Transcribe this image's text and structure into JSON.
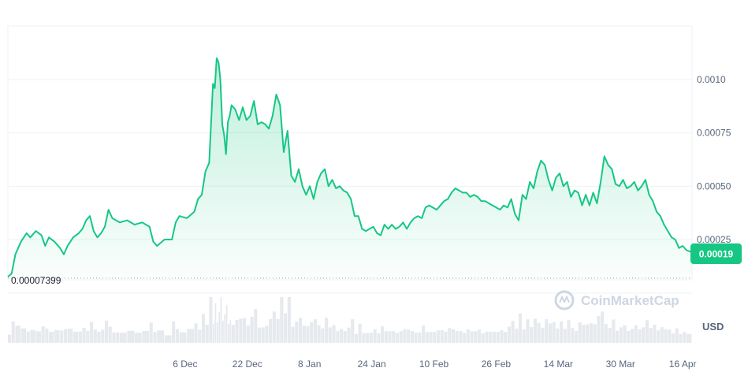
{
  "chart_data": {
    "type": "area",
    "currency_label": "USD",
    "watermark": "CoinMarketCap",
    "current_price_label": "0.00019",
    "low_price_label": "0.00007399",
    "ylim": [
      7.399e-05,
      0.00114
    ],
    "y_ticks": [
      {
        "value": 0.001,
        "label": "0.0010"
      },
      {
        "value": 0.00075,
        "label": "0.00075"
      },
      {
        "value": 0.0005,
        "label": "0.00050"
      },
      {
        "value": 0.00025,
        "label": "0.00025"
      }
    ],
    "x_ticks": [
      "6 Dec",
      "22 Dec",
      "8 Jan",
      "24 Jan",
      "10 Feb",
      "26 Feb",
      "14 Mar",
      "30 Mar",
      "16 Apr"
    ],
    "x_tick_positions": [
      5.7,
      7.7,
      9.7,
      11.7,
      13.7,
      15.7,
      17.7,
      19.7,
      21.7
    ],
    "x_range": [
      0,
      22.0
    ],
    "series": [
      {
        "color": "#16c784",
        "points": [
          [
            0.0,
            7.5e-05
          ],
          [
            0.1,
            9e-05
          ],
          [
            0.2,
            0.00018
          ],
          [
            0.35,
            0.00024
          ],
          [
            0.5,
            0.00028
          ],
          [
            0.6,
            0.00026
          ],
          [
            0.75,
            0.00029
          ],
          [
            0.9,
            0.00027
          ],
          [
            1.0,
            0.00022
          ],
          [
            1.1,
            0.00026
          ],
          [
            1.25,
            0.00024
          ],
          [
            1.4,
            0.00021
          ],
          [
            1.5,
            0.00018
          ],
          [
            1.6,
            0.00022
          ],
          [
            1.75,
            0.00026
          ],
          [
            1.9,
            0.00028
          ],
          [
            2.0,
            0.0003
          ],
          [
            2.1,
            0.00034
          ],
          [
            2.2,
            0.00036
          ],
          [
            2.3,
            0.00029
          ],
          [
            2.4,
            0.00026
          ],
          [
            2.5,
            0.00028
          ],
          [
            2.6,
            0.00031
          ],
          [
            2.7,
            0.00039
          ],
          [
            2.8,
            0.00035
          ],
          [
            2.9,
            0.00034
          ],
          [
            3.0,
            0.00033
          ],
          [
            3.2,
            0.00034
          ],
          [
            3.4,
            0.00032
          ],
          [
            3.6,
            0.00033
          ],
          [
            3.8,
            0.00031
          ],
          [
            3.9,
            0.00024
          ],
          [
            4.0,
            0.00022
          ],
          [
            4.2,
            0.00025
          ],
          [
            4.4,
            0.00025
          ],
          [
            4.5,
            0.00033
          ],
          [
            4.6,
            0.00036
          ],
          [
            4.8,
            0.00035
          ],
          [
            5.0,
            0.00038
          ],
          [
            5.1,
            0.00044
          ],
          [
            5.2,
            0.00046
          ],
          [
            5.3,
            0.00057
          ],
          [
            5.4,
            0.00061
          ],
          [
            5.5,
            0.00098
          ],
          [
            5.55,
            0.00096
          ],
          [
            5.6,
            0.0011
          ],
          [
            5.65,
            0.00108
          ],
          [
            5.7,
            0.001
          ],
          [
            5.75,
            0.00079
          ],
          [
            5.8,
            0.00074
          ],
          [
            5.85,
            0.00065
          ],
          [
            5.9,
            0.0008
          ],
          [
            5.95,
            0.00083
          ],
          [
            6.0,
            0.00088
          ],
          [
            6.1,
            0.00086
          ],
          [
            6.2,
            0.00081
          ],
          [
            6.3,
            0.00087
          ],
          [
            6.4,
            0.00081
          ],
          [
            6.5,
            0.00083
          ],
          [
            6.6,
            0.0009
          ],
          [
            6.7,
            0.00079
          ],
          [
            6.8,
            0.0008
          ],
          [
            6.9,
            0.00079
          ],
          [
            7.0,
            0.00077
          ],
          [
            7.1,
            0.00083
          ],
          [
            7.2,
            0.00093
          ],
          [
            7.3,
            0.00088
          ],
          [
            7.4,
            0.00066
          ],
          [
            7.5,
            0.00076
          ],
          [
            7.6,
            0.00055
          ],
          [
            7.7,
            0.00052
          ],
          [
            7.8,
            0.00058
          ],
          [
            7.9,
            0.0005
          ],
          [
            8.0,
            0.00046
          ],
          [
            8.1,
            0.0005
          ],
          [
            8.2,
            0.00044
          ],
          [
            8.3,
            0.00052
          ],
          [
            8.4,
            0.00056
          ],
          [
            8.5,
            0.00058
          ],
          [
            8.6,
            0.0005
          ],
          [
            8.7,
            0.00053
          ],
          [
            8.8,
            0.00049
          ],
          [
            8.9,
            0.0005
          ],
          [
            9.0,
            0.00048
          ],
          [
            9.1,
            0.00047
          ],
          [
            9.2,
            0.00044
          ],
          [
            9.3,
            0.00036
          ],
          [
            9.4,
            0.00036
          ],
          [
            9.5,
            0.0003
          ],
          [
            9.6,
            0.00029
          ],
          [
            9.7,
            0.0003
          ],
          [
            9.8,
            0.00031
          ],
          [
            9.9,
            0.00028
          ],
          [
            10.0,
            0.00027
          ],
          [
            10.1,
            0.00032
          ],
          [
            10.2,
            0.0003
          ],
          [
            10.3,
            0.00032
          ],
          [
            10.4,
            0.0003
          ],
          [
            10.5,
            0.00031
          ],
          [
            10.6,
            0.00033
          ],
          [
            10.7,
            0.0003
          ],
          [
            10.8,
            0.00033
          ],
          [
            10.9,
            0.00035
          ],
          [
            11.0,
            0.00036
          ],
          [
            11.1,
            0.00035
          ],
          [
            11.2,
            0.0004
          ],
          [
            11.3,
            0.00041
          ],
          [
            11.4,
            0.0004
          ],
          [
            11.5,
            0.00039
          ],
          [
            11.6,
            0.00041
          ],
          [
            11.7,
            0.00043
          ],
          [
            11.8,
            0.00044
          ],
          [
            11.9,
            0.00047
          ],
          [
            12.0,
            0.00049
          ],
          [
            12.1,
            0.00048
          ],
          [
            12.2,
            0.00047
          ],
          [
            12.3,
            0.00047
          ],
          [
            12.4,
            0.00045
          ],
          [
            12.5,
            0.00046
          ],
          [
            12.6,
            0.00045
          ],
          [
            12.7,
            0.00043
          ],
          [
            12.8,
            0.00043
          ],
          [
            12.9,
            0.00042
          ],
          [
            13.0,
            0.00041
          ],
          [
            13.1,
            0.0004
          ],
          [
            13.2,
            0.00039
          ],
          [
            13.3,
            0.00041
          ],
          [
            13.4,
            0.0004
          ],
          [
            13.5,
            0.00044
          ],
          [
            13.6,
            0.00037
          ],
          [
            13.7,
            0.00034
          ],
          [
            13.8,
            0.00046
          ],
          [
            13.9,
            0.00044
          ],
          [
            14.0,
            0.00052
          ],
          [
            14.1,
            0.00049
          ],
          [
            14.2,
            0.00057
          ],
          [
            14.3,
            0.00062
          ],
          [
            14.4,
            0.0006
          ],
          [
            14.5,
            0.00053
          ],
          [
            14.6,
            0.00048
          ],
          [
            14.7,
            0.00054
          ],
          [
            14.8,
            0.00056
          ],
          [
            14.9,
            0.0005
          ],
          [
            15.0,
            0.00052
          ],
          [
            15.1,
            0.00045
          ],
          [
            15.2,
            0.00048
          ],
          [
            15.3,
            0.00047
          ],
          [
            15.4,
            0.00041
          ],
          [
            15.5,
            0.00046
          ],
          [
            15.6,
            0.00041
          ],
          [
            15.7,
            0.00047
          ],
          [
            15.8,
            0.00042
          ],
          [
            15.9,
            0.00052
          ],
          [
            16.0,
            0.00064
          ],
          [
            16.1,
            0.0006
          ],
          [
            16.2,
            0.00058
          ],
          [
            16.3,
            0.00051
          ],
          [
            16.4,
            0.0005
          ],
          [
            16.5,
            0.00053
          ],
          [
            16.6,
            0.00049
          ],
          [
            16.7,
            0.0005
          ],
          [
            16.8,
            0.00052
          ],
          [
            16.9,
            0.00048
          ],
          [
            17.0,
            0.0005
          ],
          [
            17.1,
            0.00053
          ],
          [
            17.2,
            0.00046
          ],
          [
            17.3,
            0.00043
          ],
          [
            17.4,
            0.00038
          ],
          [
            17.5,
            0.00036
          ],
          [
            17.6,
            0.00032
          ],
          [
            17.7,
            0.00029
          ],
          [
            17.8,
            0.00026
          ],
          [
            17.9,
            0.00025
          ],
          [
            18.0,
            0.00021
          ],
          [
            18.1,
            0.00022
          ],
          [
            18.2,
            0.0002
          ],
          [
            18.35,
            0.00019
          ]
        ]
      }
    ]
  }
}
